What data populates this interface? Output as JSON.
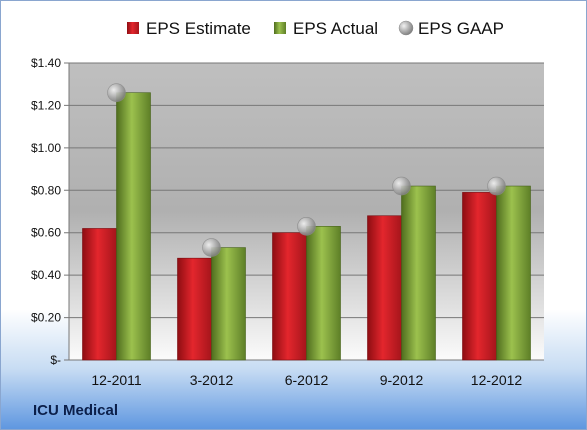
{
  "company_label": "ICU Medical",
  "colors": {
    "estimate": "#c8141b",
    "actual": "#7ea23b",
    "gaap": "#b8b8b8"
  },
  "chart_data": {
    "type": "bar",
    "categories": [
      "12-2011",
      "3-2012",
      "6-2012",
      "9-2012",
      "12-2012"
    ],
    "series": [
      {
        "name": "EPS Estimate",
        "type": "bar",
        "values": [
          0.62,
          0.48,
          0.6,
          0.68,
          0.79
        ]
      },
      {
        "name": "EPS Actual",
        "type": "bar",
        "values": [
          1.26,
          0.53,
          0.63,
          0.82,
          0.82
        ]
      },
      {
        "name": "EPS GAAP",
        "type": "scatter",
        "values": [
          1.26,
          0.53,
          0.63,
          0.82,
          0.82
        ]
      }
    ],
    "ylim": [
      0,
      1.4
    ],
    "yticks": [
      {
        "value": 0,
        "label": "$-"
      },
      {
        "value": 0.2,
        "label": "$0.20"
      },
      {
        "value": 0.4,
        "label": "$0.40"
      },
      {
        "value": 0.6,
        "label": "$0.60"
      },
      {
        "value": 0.8,
        "label": "$0.80"
      },
      {
        "value": 1.0,
        "label": "$1.00"
      },
      {
        "value": 1.2,
        "label": "$1.20"
      },
      {
        "value": 1.4,
        "label": "$1.40"
      }
    ],
    "grid": true,
    "legend": "top"
  }
}
